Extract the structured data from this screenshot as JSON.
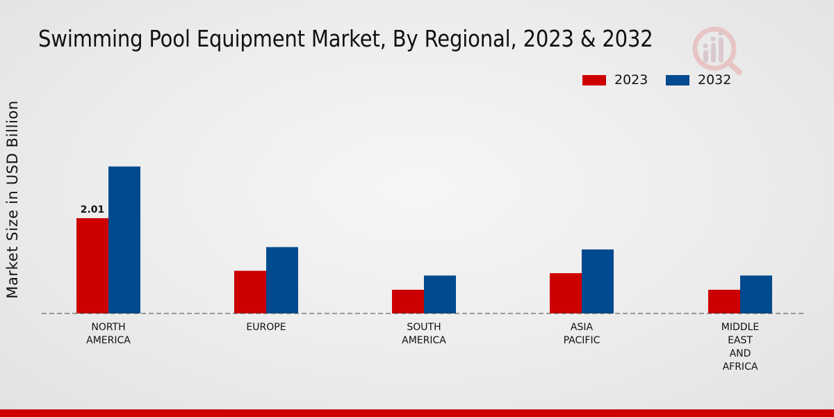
{
  "chart_data": {
    "type": "bar",
    "title": "Swimming Pool Equipment Market, By Regional, 2023 & 2032",
    "xlabel": "",
    "ylabel": "Market Size in USD Billion",
    "categories": [
      [
        "NORTH",
        "AMERICA"
      ],
      [
        "EUROPE"
      ],
      [
        "SOUTH",
        "AMERICA"
      ],
      [
        "ASIA",
        "PACIFIC"
      ],
      [
        "MIDDLE",
        "EAST",
        "AND",
        "AFRICA"
      ]
    ],
    "series": [
      {
        "name": "2023",
        "color": "#cc0000",
        "values": [
          2.01,
          0.9,
          0.5,
          0.85,
          0.5
        ]
      },
      {
        "name": "2032",
        "color": "#004a8f",
        "values": [
          3.1,
          1.4,
          0.8,
          1.35,
          0.8
        ]
      }
    ],
    "data_labels": [
      {
        "series": 0,
        "index": 0,
        "text": "2.01"
      }
    ],
    "ylim": [
      0,
      5
    ],
    "grid": false,
    "legend": "top-right"
  }
}
